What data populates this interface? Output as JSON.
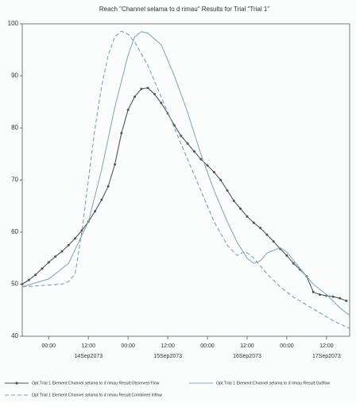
{
  "chart_data": {
    "type": "line",
    "title": "Reach \"Channel  selama to d rimau\" Results for Trial \"Trial 1\"",
    "xlim": [
      -8,
      91
    ],
    "xticks": [
      {
        "value": 0,
        "label": "00:00"
      },
      {
        "value": 12,
        "label": "12:00"
      },
      {
        "value": 24,
        "label": "00:00"
      },
      {
        "value": 36,
        "label": "12:00"
      },
      {
        "value": 48,
        "label": "00:00"
      },
      {
        "value": 60,
        "label": "12:00"
      },
      {
        "value": 72,
        "label": "00:00"
      },
      {
        "value": 84,
        "label": "12:00"
      }
    ],
    "x_date_labels": [
      {
        "value": 12,
        "label": "14Sep2073"
      },
      {
        "value": 36,
        "label": "15Sep2073"
      },
      {
        "value": 60,
        "label": "16Sep2073"
      },
      {
        "value": 84,
        "label": "17Sep2073"
      }
    ],
    "ylim": [
      40,
      100
    ],
    "yticks": [
      40,
      50,
      60,
      70,
      80,
      90,
      100
    ],
    "series": [
      {
        "name": "Opt:Trial 1 Element:Channel  selama to d rimau Result:Observed Flow",
        "color": "#555555",
        "markers": true,
        "dash": false,
        "x": [
          -8,
          -6,
          -4,
          -2,
          0,
          2,
          4,
          6,
          8,
          10,
          12,
          14,
          16,
          18,
          20,
          22,
          24,
          26,
          28,
          30,
          32,
          34,
          36,
          38,
          40,
          42,
          44,
          46,
          48,
          50,
          52,
          54,
          56,
          58,
          60,
          62,
          64,
          66,
          68,
          70,
          72,
          74,
          76,
          78,
          80,
          82,
          84,
          86,
          88,
          90
        ],
        "values": [
          50,
          50.8,
          51.8,
          53,
          54.2,
          55.3,
          56.3,
          57.5,
          58.8,
          60.3,
          62,
          64,
          66.2,
          68.8,
          73,
          79,
          83.5,
          86,
          87.5,
          87.7,
          86.5,
          84.8,
          82.8,
          80.5,
          78.5,
          77,
          75.5,
          74,
          72.8,
          71.5,
          70,
          68,
          66,
          64.5,
          63,
          61.8,
          60.8,
          59.5,
          58.2,
          56.8,
          55.5,
          54,
          52.8,
          51.5,
          48.5,
          48,
          47.8,
          47.6,
          47.3,
          46.8
        ]
      },
      {
        "name": "Opt:Trial 1 Element:Channel  selama to d rimau Result:Outflow",
        "color": "#8aaabb",
        "markers": false,
        "dash": false,
        "x": [
          -8,
          0,
          6,
          12,
          16,
          20,
          24,
          26,
          28,
          30,
          34,
          38,
          42,
          46,
          50,
          54,
          57,
          60,
          62,
          64,
          66,
          70,
          72,
          76,
          80,
          84,
          88,
          91
        ],
        "values": [
          49.5,
          51,
          54,
          62,
          72,
          84,
          94,
          97.5,
          98.5,
          98.2,
          96,
          90,
          83,
          75,
          68,
          62,
          58,
          55,
          54,
          54.5,
          56,
          57,
          56.2,
          53,
          50,
          48,
          45.5,
          44
        ]
      },
      {
        "name": "Opt:Trial 1 Element:Channel  selama to d rimau Result:Combined Inflow",
        "color": "#7f9fb3",
        "markers": false,
        "dash": true,
        "x": [
          -8,
          4,
          6,
          8,
          10,
          12,
          14,
          16,
          18,
          20,
          22,
          24,
          26,
          30,
          34,
          38,
          42,
          46,
          50,
          54,
          57,
          59.5,
          62,
          66,
          70,
          74,
          78,
          82,
          86,
          91
        ],
        "values": [
          49.5,
          50,
          50.5,
          52,
          60,
          70,
          80,
          88,
          94,
          97.5,
          98.6,
          98,
          96.5,
          92,
          86,
          80,
          74,
          68,
          62,
          57.5,
          55.5,
          56.3,
          55,
          52,
          49.5,
          47.5,
          46,
          44.5,
          43,
          41.5
        ]
      }
    ]
  }
}
